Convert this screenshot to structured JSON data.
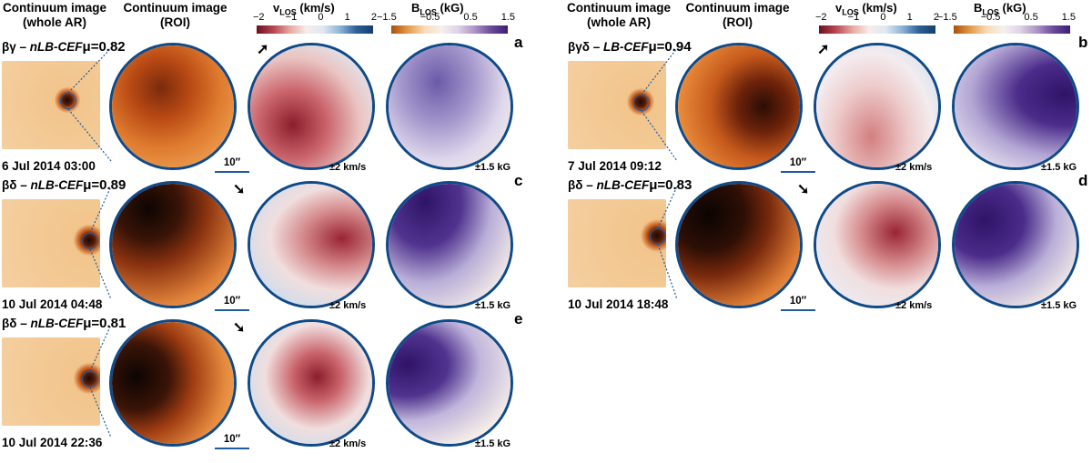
{
  "headers": {
    "left": {
      "whole_ar": "Continuum image\n(whole AR)",
      "roi": "Continuum image\n(ROI)"
    },
    "right": {
      "whole_ar": "Continuum image\n(whole AR)",
      "roi": "Continuum image\n(ROI)"
    }
  },
  "colorbars": {
    "v": {
      "title_main": "v",
      "title_sub": "LOS",
      "title_unit": " (km/s)",
      "ticks": [
        "−2",
        "−1",
        "0",
        "1",
        "2"
      ]
    },
    "b": {
      "title_main": "B",
      "title_sub": "LOS",
      "title_unit": " (kG)",
      "ticks": [
        "−1.5",
        "−0.5",
        "0.5",
        "1.5"
      ]
    }
  },
  "scale_label": "10″",
  "v_range": "±2 km/s",
  "b_range": "±1.5 kG",
  "panels": [
    {
      "id": "a",
      "class": "βγ",
      "model": "nLB-CEF",
      "mu": "μ=0.82",
      "date": "6 Jul 2014 03:00",
      "arrow": "➚"
    },
    {
      "id": "b",
      "class": "βγδ",
      "model": "LB-CEF",
      "mu": "μ=0.94",
      "date": "7 Jul 2014 09:12",
      "arrow": "➚"
    },
    {
      "id": "c",
      "class": "βδ",
      "model": "nLB-CEF",
      "mu": "μ=0.89",
      "date": "10 Jul 2014 04:48",
      "arrow": "➘"
    },
    {
      "id": "d",
      "class": "βδ",
      "model": "nLB-CEF",
      "mu": "μ=0.83",
      "date": "10 Jul 2014 18:48",
      "arrow": "➘"
    },
    {
      "id": "e",
      "class": "βδ",
      "model": "nLB-CEF",
      "mu": "μ=0.81",
      "date": "10 Jul 2014 22:36",
      "arrow": "➘"
    }
  ]
}
